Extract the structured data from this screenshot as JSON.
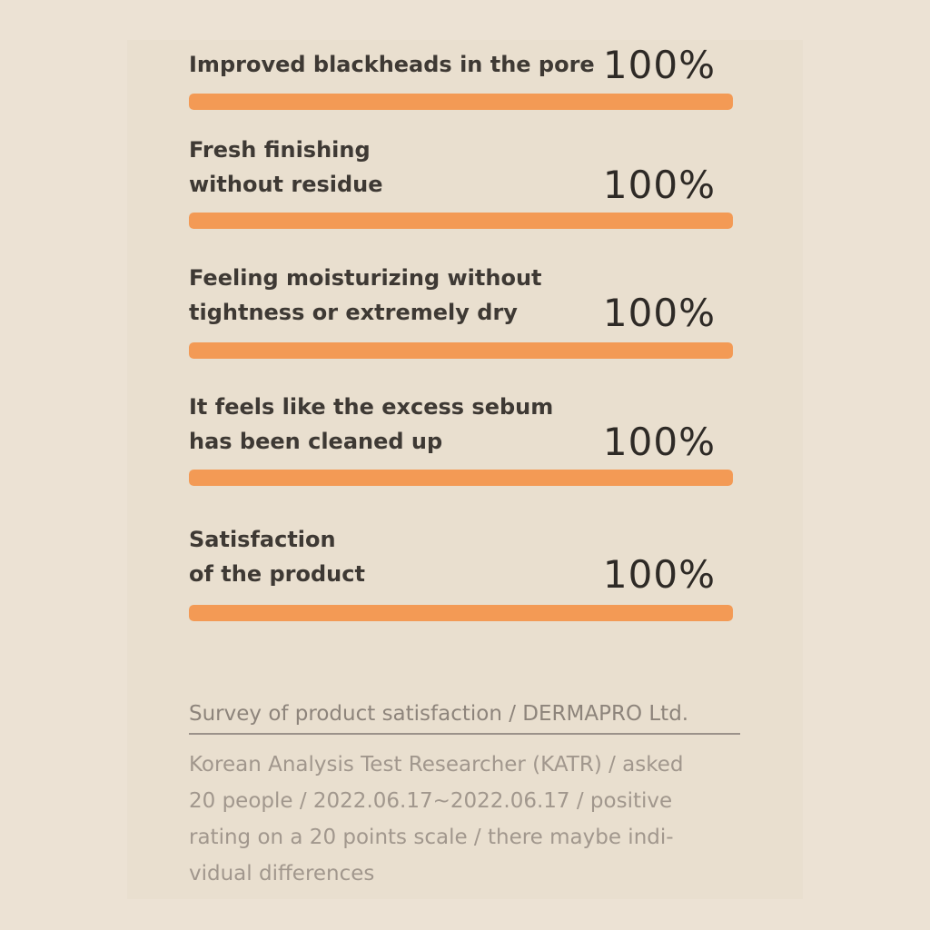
{
  "chart_data": {
    "type": "bar",
    "orientation": "horizontal",
    "categories": [
      "Improved blackheads in the pore",
      "Fresh finishing\nwithout residue",
      "Feeling moisturizing without\ntightness or extremely dry",
      "It feels like the excess sebum\nhas been cleaned up",
      "Satisfaction\nof the product"
    ],
    "values": [
      100,
      100,
      100,
      100,
      100
    ],
    "value_labels": [
      "100%",
      "100%",
      "100%",
      "100%",
      "100%"
    ],
    "xlim": [
      0,
      100
    ],
    "bar_color": "#f39a55",
    "grid": false,
    "legend": "none"
  },
  "footer": {
    "source": "Survey of product satisfaction / DERMAPRO Ltd.",
    "note_lines": [
      "Korean Analysis Test Researcher (KATR) / asked",
      "20 people / 2022.06.17~2022.06.17 / positive",
      "rating on a 20 points scale / there maybe indi-",
      "vidual differences"
    ]
  },
  "colors": {
    "background": "#ece2d4",
    "bar": "#f39a55",
    "text_dark": "#3e3934",
    "text_muted": "#8d847b"
  }
}
